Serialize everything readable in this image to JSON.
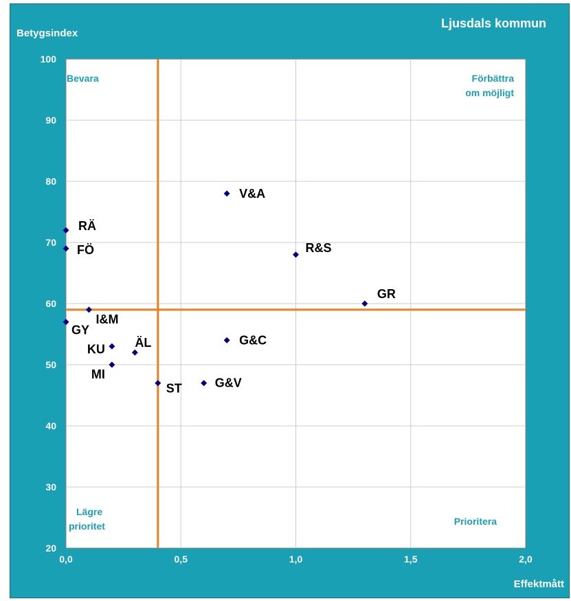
{
  "chart_data": {
    "type": "scatter",
    "title": "Ljusdals kommun",
    "xlabel": "Effektmått",
    "ylabel": "Betygsindex",
    "xlim": [
      0,
      2
    ],
    "ylim": [
      20,
      100
    ],
    "x_ticks": [
      "0,0",
      "0,5",
      "1,0",
      "1,5",
      "2,0"
    ],
    "y_ticks": [
      "100",
      "90",
      "80",
      "70",
      "60",
      "50",
      "40",
      "30",
      "20"
    ],
    "grid": true,
    "reference_lines": {
      "x": 0.4,
      "y": 59
    },
    "quadrant_labels": {
      "top_left": "Bevara",
      "top_right": [
        "Förbättra",
        "om möjligt"
      ],
      "bottom_left": [
        "Lägre",
        "prioritet"
      ],
      "bottom_right": "Prioritera"
    },
    "points": [
      {
        "label": "V&A",
        "x": 0.7,
        "y": 78
      },
      {
        "label": "RÄ",
        "x": 0.0,
        "y": 72
      },
      {
        "label": "FÖ",
        "x": 0.0,
        "y": 69
      },
      {
        "label": "R&S",
        "x": 1.0,
        "y": 68
      },
      {
        "label": "GR",
        "x": 1.3,
        "y": 60
      },
      {
        "label": "I&M",
        "x": 0.1,
        "y": 59
      },
      {
        "label": "GY",
        "x": 0.0,
        "y": 57
      },
      {
        "label": "G&C",
        "x": 0.7,
        "y": 54
      },
      {
        "label": "KU",
        "x": 0.2,
        "y": 53
      },
      {
        "label": "ÄL",
        "x": 0.3,
        "y": 52
      },
      {
        "label": "MI",
        "x": 0.2,
        "y": 50
      },
      {
        "label": "ST",
        "x": 0.4,
        "y": 47
      },
      {
        "label": "G&V",
        "x": 0.6,
        "y": 47
      }
    ],
    "colors": {
      "background": "#1aa0b4",
      "plot_area": "#ffffff",
      "gridline": "#c8c8e6",
      "reference_line": "#f07d1e",
      "marker": "#000080",
      "quadrant_text": "#1aa0b4",
      "frame_text": "#ffffff",
      "point_text": "#000000"
    }
  }
}
